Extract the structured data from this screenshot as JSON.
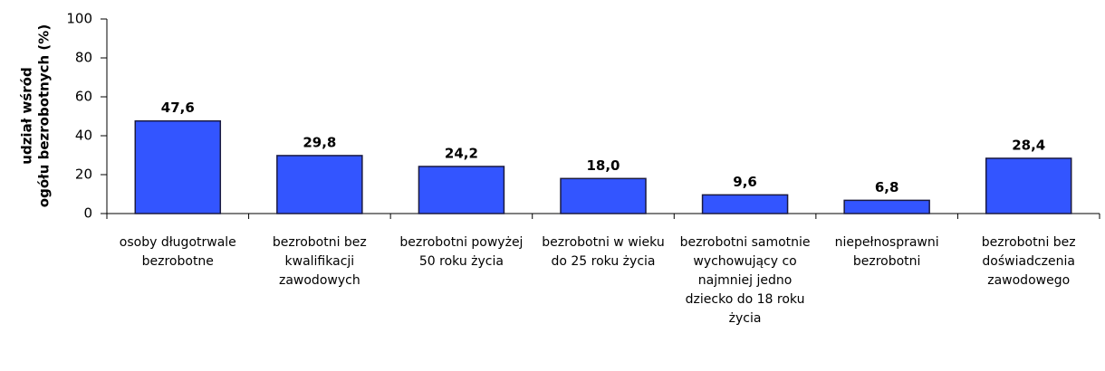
{
  "chart_data": {
    "type": "bar",
    "y_label": [
      "udział wśród",
      "ogółu bezrobotnych (%)"
    ],
    "categories": [
      "osoby długotrwale bezrobotne",
      "bezrobotni bez kwalifikacji zawodowych",
      "bezrobotni powyżej 50 roku życia",
      "bezrobotni w wieku do 25 roku życia",
      "bezrobotni samotnie wychowujący co najmniej jedno dziecko do 18 roku życia",
      "niepełnosprawni bezrobotni",
      "bezrobotni bez doświadczenia zawodowego"
    ],
    "values": [
      47.6,
      29.8,
      24.2,
      18.0,
      9.6,
      6.8,
      28.4
    ],
    "value_labels": [
      "47,6",
      "29,8",
      "24,2",
      "18,0",
      "9,6",
      "6,8",
      "28,4"
    ],
    "color": "#3355ff",
    "ylim": [
      0,
      100
    ],
    "yticks": [
      0,
      20,
      40,
      60,
      80,
      100
    ],
    "grid": false
  }
}
